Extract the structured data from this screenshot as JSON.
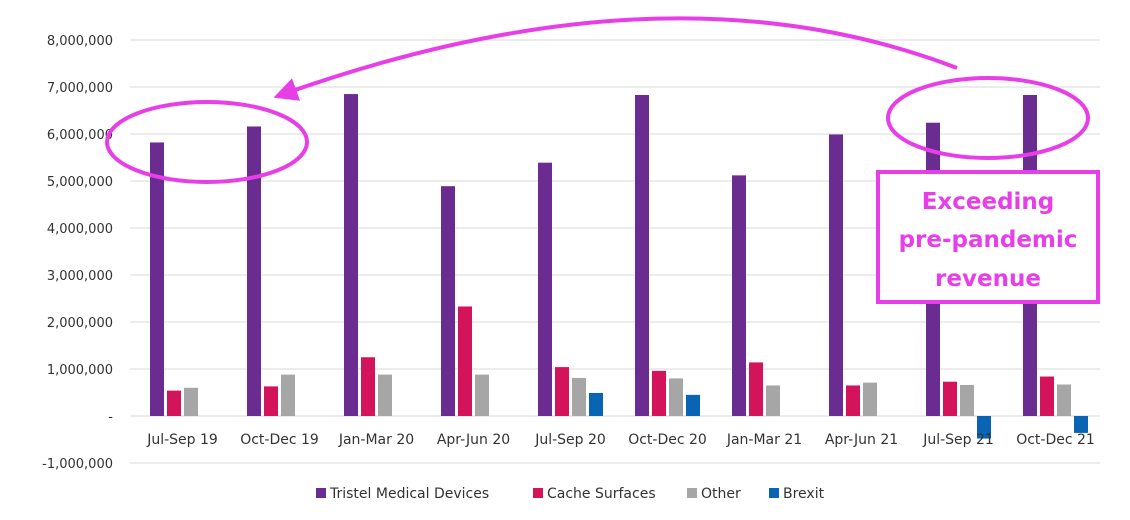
{
  "chart_data": {
    "type": "bar",
    "title": "",
    "xlabel": "",
    "ylabel": "",
    "ylim": [
      -1000000,
      8000000
    ],
    "y_ticks": [
      {
        "value": -1000000,
        "label": "-1,000,000"
      },
      {
        "value": 0,
        "label": "-"
      },
      {
        "value": 1000000,
        "label": "1,000,000"
      },
      {
        "value": 2000000,
        "label": "2,000,000"
      },
      {
        "value": 3000000,
        "label": "3,000,000"
      },
      {
        "value": 4000000,
        "label": "4,000,000"
      },
      {
        "value": 5000000,
        "label": "5,000,000"
      },
      {
        "value": 6000000,
        "label": "6,000,000"
      },
      {
        "value": 7000000,
        "label": "7,000,000"
      },
      {
        "value": 8000000,
        "label": "8,000,000"
      }
    ],
    "grid": true,
    "legend": "bottom",
    "categories": [
      "Jul-Sep 19",
      "Oct-Dec 19",
      "Jan-Mar 20",
      "Apr-Jun 20",
      "Jul-Sep 20",
      "Oct-Dec 20",
      "Jan-Mar 21",
      "Apr-Jun 21",
      "Jul-Sep 21",
      "Oct-Dec 21"
    ],
    "series": [
      {
        "name": "Tristel Medical Devices",
        "color": "#6a2c91",
        "values": [
          5820000,
          6160000,
          6850000,
          4890000,
          5390000,
          6830000,
          5120000,
          5990000,
          6240000,
          6830000
        ]
      },
      {
        "name": "Cache Surfaces",
        "color": "#d4145a",
        "values": [
          540000,
          630000,
          1250000,
          2330000,
          1040000,
          960000,
          1140000,
          650000,
          730000,
          840000
        ]
      },
      {
        "name": "Other",
        "color": "#a6a6a6",
        "values": [
          600000,
          880000,
          880000,
          880000,
          810000,
          800000,
          650000,
          710000,
          660000,
          670000
        ]
      },
      {
        "name": "Brexit",
        "color": "#0a64b4",
        "values": [
          0,
          0,
          0,
          0,
          490000,
          450000,
          0,
          0,
          -480000,
          -360000
        ]
      }
    ]
  },
  "annotation": {
    "text_lines": [
      "Exceeding",
      "pre-pandemic",
      "revenue"
    ],
    "color": "#e83ee8",
    "highlighted_categories": [
      0,
      1,
      8,
      9
    ]
  }
}
